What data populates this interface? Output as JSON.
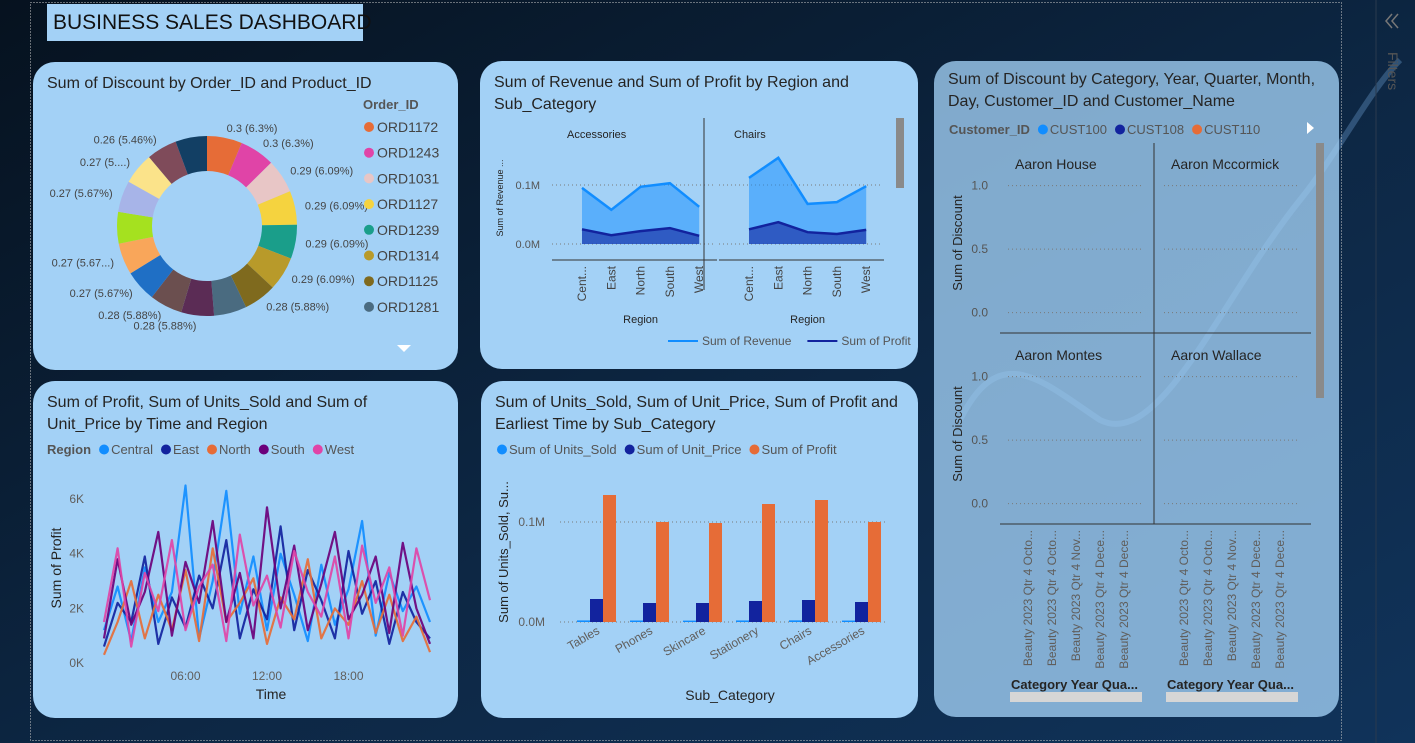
{
  "title": "BUSINESS SALES DASHBOARD",
  "filters_pane": {
    "label": "Filters"
  },
  "chart_data": [
    {
      "type": "pie",
      "title": "Sum of Discount by Order_ID and Product_ID",
      "legend_title": "Order_ID",
      "hole": true,
      "categories": [
        "ORD1172",
        "ORD1243",
        "ORD1031",
        "ORD1127",
        "ORD1239",
        "ORD1314",
        "ORD1125",
        "ORD1281",
        null,
        null,
        null,
        null,
        null,
        null,
        null,
        null,
        null
      ],
      "values": [
        0.3,
        0.3,
        0.29,
        0.29,
        0.29,
        0.29,
        0.28,
        0.28,
        0.28,
        0.28,
        0.27,
        0.27,
        0.27,
        0.27,
        0.27,
        0.26,
        0.27
      ],
      "value_labels": [
        "0.3 (6.3%)",
        "0.3 (6.3%)",
        "0.29 (6.09%)",
        "0.29 (6.09%)",
        "0.29 (6.09%)",
        "0.29 (6.09%)",
        "0.28 (5.88%)",
        null,
        "0.28 (5.88%)",
        "0.28 (5.88%)",
        "0.27 (5.67%)",
        "0.27 (5.67...)",
        null,
        "0.27 (5.67%)",
        "0.27 (5....)",
        "0.26 (5.46%)",
        null
      ],
      "colors": [
        "#E66C37",
        "#E044A7",
        "#E8C6C6",
        "#F5D33F",
        "#1A9E8A",
        "#B89A2A",
        "#7F6A1E",
        "#4A6B80",
        "#5B2C55",
        "#6B4F4F",
        "#1F6FC5",
        "#F9A65A",
        "#A5E11F",
        "#A7B4E8",
        "#FBE38A",
        "#7F4B5A",
        "#123F64"
      ]
    },
    {
      "type": "area",
      "title": "Sum of Revenue and Sum of Profit by Region and Sub_Category",
      "panels": [
        "Accessories",
        "Chairs"
      ],
      "categories": [
        "Cent...",
        "East",
        "North",
        "South",
        "West"
      ],
      "x_label": "Region",
      "y_label": "Sum of Revenue ...",
      "ylim": [
        -27000,
        210000
      ],
      "yticks": [
        {
          "value": 0,
          "label": "0.0M"
        },
        {
          "value": 100000,
          "label": "0.1M"
        }
      ],
      "grid": true,
      "legend": "bottom",
      "series": [
        {
          "name": "Sum of Revenue",
          "color": "#118DFF",
          "values": [
            [
              95000,
              58000,
              97000,
              103000,
              63000
            ],
            [
              112000,
              146000,
              68000,
              71000,
              98000
            ]
          ]
        },
        {
          "name": "Sum of Profit",
          "color": "#12239E",
          "values": [
            [
              25000,
              15000,
              22000,
              27000,
              14000
            ],
            [
              25000,
              37000,
              20000,
              17000,
              24000
            ]
          ]
        }
      ]
    },
    {
      "type": "line",
      "title": "Sum of Discount by Category, Year, Quarter, Month, Day, Customer_ID and Customer_Name",
      "legend_title": "Customer_ID",
      "panels": [
        "Aaron House",
        "Aaron Mccormick",
        "Aaron Montes",
        "Aaron Wallace"
      ],
      "categories": [
        "Beauty 2023 Qtr 4 Octo...",
        "Beauty 2023 Qtr 4 Octo...",
        "Beauty 2023 Qtr 4 Nov...",
        "Beauty 2023 Qtr 4 Dece...",
        "Beauty 2023 Qtr 4 Dece..."
      ],
      "x_label": "Category Year Qua...",
      "y_label": "Sum of Discount",
      "ylim": [
        -0.16,
        1.28
      ],
      "yticks": [
        {
          "value": 0,
          "label": "0.0"
        },
        0.5,
        {
          "value": 1,
          "label": "1.0"
        }
      ],
      "grid": true,
      "series": [
        {
          "name": "CUST100",
          "color": "#118DFF"
        },
        {
          "name": "CUST108",
          "color": "#12239E"
        },
        {
          "name": "CUST110",
          "color": "#E66C37"
        }
      ]
    },
    {
      "type": "line",
      "title": "Sum of Profit, Sum of Units_Sold and Sum of Unit_Price by Time and Region",
      "legend_title": "Region",
      "x_label": "Time",
      "y_label": "Sum of Profit",
      "x": [
        0,
        1,
        2,
        3,
        4,
        5,
        6,
        7,
        8,
        9,
        10,
        11,
        12,
        13,
        14,
        15,
        16,
        17,
        18,
        19,
        20,
        21,
        22,
        23,
        24
      ],
      "xlim": [
        0,
        24
      ],
      "xticks": [
        {
          "value": 6,
          "label": "06:00"
        },
        {
          "value": 12,
          "label": "12:00"
        },
        {
          "value": 18,
          "label": "18:00"
        }
      ],
      "ylim": [
        0,
        6700
      ],
      "yticks": [
        {
          "value": 0,
          "label": "0K"
        },
        {
          "value": 2000,
          "label": "2K"
        },
        {
          "value": 4000,
          "label": "4K"
        },
        {
          "value": 6000,
          "label": "6K"
        }
      ],
      "grid": false,
      "series": [
        {
          "name": "Central",
          "color": "#118DFF",
          "values": [
            1200,
            2800,
            800,
            3500,
            1500,
            2600,
            6500,
            900,
            3000,
            6300,
            1800,
            3900,
            1200,
            4000,
            2500,
            800,
            3600,
            1400,
            2700,
            5200,
            1000,
            3300,
            1900,
            2800,
            1500
          ]
        },
        {
          "name": "East",
          "color": "#12239E",
          "values": [
            600,
            2200,
            1500,
            3900,
            700,
            2400,
            1300,
            3200,
            2000,
            4500,
            900,
            2700,
            1600,
            5000,
            1200,
            3400,
            2300,
            900,
            4100,
            1800,
            3000,
            700,
            2600,
            1500,
            900
          ]
        },
        {
          "name": "North",
          "color": "#E66C37",
          "values": [
            300,
            1500,
            3000,
            900,
            2500,
            1200,
            3400,
            800,
            4200,
            1500,
            2200,
            3100,
            700,
            2400,
            1600,
            3800,
            900,
            2000,
            1400,
            3000,
            1100,
            2500,
            800,
            1700,
            400
          ]
        },
        {
          "name": "South",
          "color": "#6B007B",
          "values": [
            900,
            3800,
            1400,
            2600,
            4800,
            1000,
            3700,
            2200,
            5200,
            1500,
            3300,
            900,
            5700,
            2000,
            4300,
            1200,
            2900,
            4800,
            1600,
            2500,
            3900,
            1100,
            4400,
            2000,
            700
          ]
        },
        {
          "name": "West",
          "color": "#E044A7",
          "values": [
            1500,
            4200,
            600,
            3300,
            1900,
            4500,
            1200,
            2800,
            3600,
            800,
            4700,
            2100,
            3200,
            1300,
            4100,
            2600,
            1700,
            3900,
            900,
            4300,
            2200,
            3500,
            1000,
            4200,
            2300
          ]
        }
      ]
    },
    {
      "type": "bar",
      "title": "Sum of Units_Sold, Sum of Unit_Price, Sum of Profit and Earliest Time by Sub_Category",
      "x_label": "Sub_Category",
      "y_label": "Sum of Units_Sold, Su...",
      "categories": [
        "Tables",
        "Phones",
        "Skincare",
        "Stationery",
        "Chairs",
        "Accessories"
      ],
      "ylim": [
        0,
        142000
      ],
      "yticks": [
        {
          "value": 0,
          "label": "0.0M"
        },
        {
          "value": 100000,
          "label": "0.1M"
        }
      ],
      "grid": true,
      "series": [
        {
          "name": "Sum of Units_Sold",
          "color": "#118DFF",
          "values": [
            1600,
            1500,
            1400,
            1550,
            1650,
            1450
          ]
        },
        {
          "name": "Sum of Unit_Price",
          "color": "#12239E",
          "values": [
            23000,
            19000,
            19000,
            21000,
            22000,
            20000
          ]
        },
        {
          "name": "Sum of Profit",
          "color": "#E66C37",
          "values": [
            127000,
            100000,
            99000,
            118000,
            122000,
            100000
          ]
        }
      ]
    }
  ]
}
